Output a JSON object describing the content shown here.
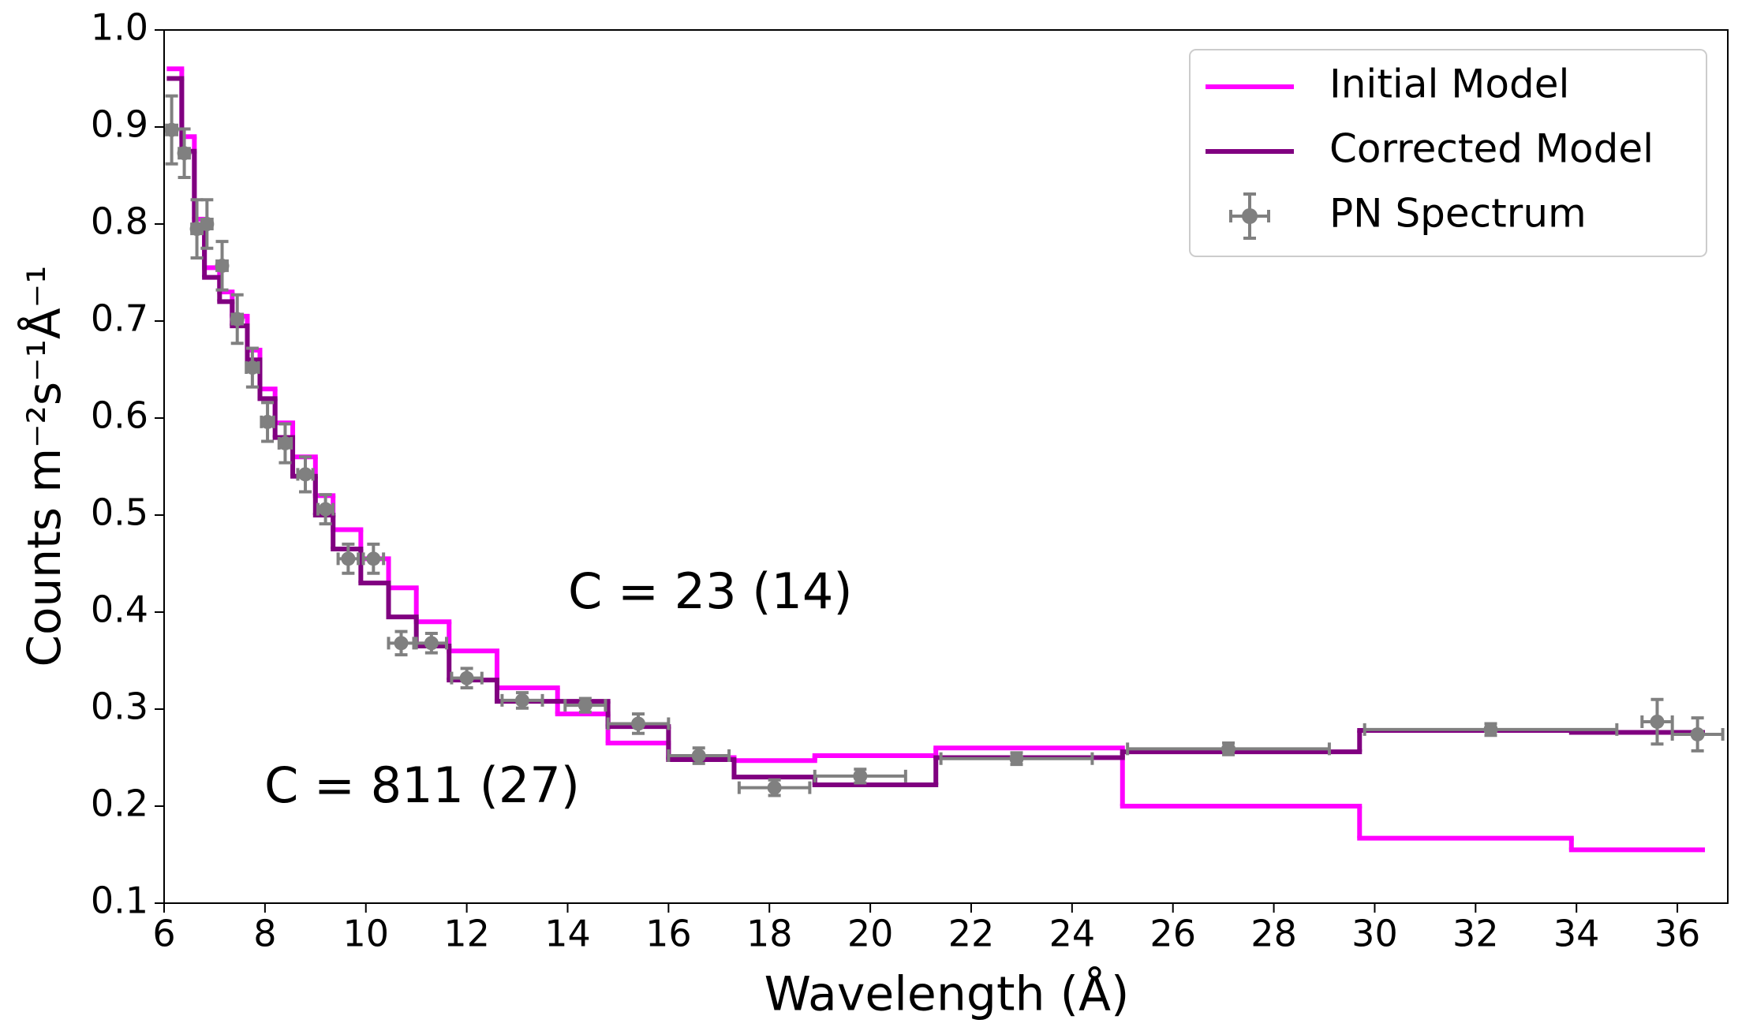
{
  "chart_data": {
    "type": "line",
    "xlabel": "Wavelength (Å)",
    "ylabel": "Counts m⁻²s⁻¹Å⁻¹",
    "xlim": [
      6,
      37
    ],
    "ylim": [
      0.1,
      1.0
    ],
    "xticks": [
      6,
      8,
      10,
      12,
      14,
      16,
      18,
      20,
      22,
      24,
      26,
      28,
      30,
      32,
      34,
      36
    ],
    "yticks": [
      0.1,
      0.2,
      0.3,
      0.4,
      0.5,
      0.6,
      0.7,
      0.8,
      0.9,
      {
        "value": 1.0,
        "label": "1.0"
      }
    ],
    "legend": "upper right",
    "annotations": [
      {
        "text": "C = 23 (14)",
        "color": "#800080"
      },
      {
        "text": "C = 811 (27)",
        "color": "#ff00ff"
      }
    ],
    "edges": [
      6.1,
      6.35,
      6.6,
      6.8,
      7.1,
      7.35,
      7.65,
      7.9,
      8.2,
      8.55,
      9.0,
      9.35,
      9.9,
      10.45,
      11.0,
      11.65,
      12.6,
      13.8,
      14.8,
      16.0,
      17.3,
      18.9,
      21.3,
      25.0,
      29.7,
      33.9,
      36.5
    ],
    "series": [
      {
        "name": "Initial Model",
        "color": "#ff00ff",
        "drawstyle": "steps",
        "values": [
          0.96,
          0.89,
          0.805,
          0.755,
          0.73,
          0.705,
          0.67,
          0.63,
          0.595,
          0.56,
          0.52,
          0.485,
          0.455,
          0.425,
          0.39,
          0.36,
          0.322,
          0.295,
          0.265,
          0.25,
          0.247,
          0.252,
          0.26,
          0.2,
          0.167,
          0.155
        ]
      },
      {
        "name": "Corrected Model",
        "color": "#800080",
        "drawstyle": "steps",
        "values": [
          0.95,
          0.875,
          0.795,
          0.745,
          0.72,
          0.695,
          0.66,
          0.62,
          0.58,
          0.54,
          0.5,
          0.465,
          0.43,
          0.395,
          0.365,
          0.33,
          0.308,
          0.308,
          0.282,
          0.248,
          0.23,
          0.222,
          0.25,
          0.256,
          0.278,
          0.276
        ]
      },
      {
        "name": "PN Spectrum",
        "color": "#808080",
        "drawstyle": "errorbar",
        "x": [
          6.15,
          6.4,
          6.65,
          6.85,
          7.15,
          7.45,
          7.75,
          8.05,
          8.4,
          8.8,
          9.2,
          9.65,
          10.15,
          10.7,
          11.3,
          12.0,
          13.1,
          14.35,
          15.4,
          16.6,
          18.1,
          19.8,
          22.9,
          27.1,
          32.3,
          35.6,
          36.4
        ],
        "values": [
          0.897,
          0.873,
          0.795,
          0.8,
          0.757,
          0.702,
          0.652,
          0.596,
          0.574,
          0.542,
          0.506,
          0.455,
          0.455,
          0.368,
          0.368,
          0.332,
          0.309,
          0.304,
          0.285,
          0.252,
          0.219,
          0.231,
          0.249,
          0.259,
          0.279,
          0.287,
          0.274
        ],
        "xerr": [
          0.1,
          0.1,
          0.1,
          0.1,
          0.1,
          0.1,
          0.12,
          0.12,
          0.12,
          0.15,
          0.15,
          0.2,
          0.2,
          0.25,
          0.3,
          0.3,
          0.4,
          0.4,
          0.6,
          0.6,
          0.7,
          0.9,
          1.5,
          2,
          2.5,
          0.3,
          0.5
        ],
        "yerr": [
          0.035,
          0.025,
          0.03,
          0.025,
          0.025,
          0.025,
          0.02,
          0.02,
          0.02,
          0.018,
          0.015,
          0.015,
          0.015,
          0.012,
          0.01,
          0.01,
          0.008,
          0.007,
          0.01,
          0.008,
          0.008,
          0.007,
          0.006,
          0.006,
          0.006,
          0.023,
          0.017
        ]
      }
    ]
  }
}
